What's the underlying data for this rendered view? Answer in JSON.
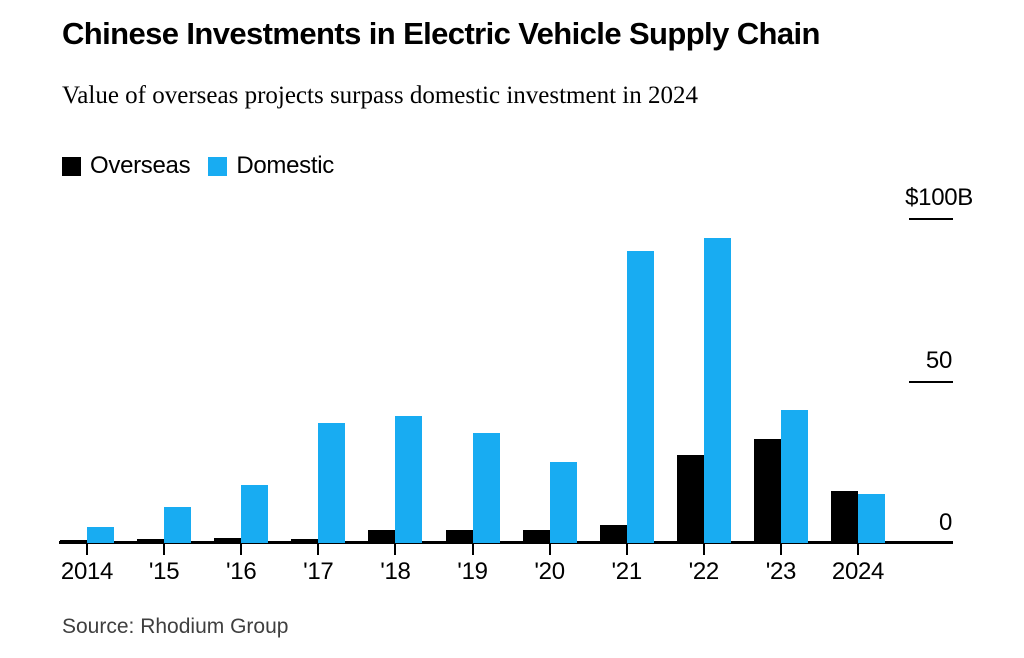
{
  "header": {
    "title": "Chinese Investments in Electric Vehicle Supply Chain",
    "subtitle": "Value of overseas projects surpass domestic investment in 2024"
  },
  "legend": {
    "items": [
      {
        "label": "Overseas",
        "color": "#000000"
      },
      {
        "label": "Domestic",
        "color": "#18acf2"
      }
    ]
  },
  "chart_data": {
    "type": "bar",
    "title": "Chinese Investments in Electric Vehicle Supply Chain",
    "subtitle": "Value of overseas projects surpass domestic investment in 2024",
    "unit": "billion USD",
    "categories": [
      "2014",
      "'15",
      "'16",
      "'17",
      "'18",
      "'19",
      "'20",
      "'21",
      "'22",
      "'23",
      "2024"
    ],
    "series": [
      {
        "name": "Overseas",
        "color": "#000000",
        "values": [
          0.8,
          1.2,
          1.5,
          1.3,
          4,
          4,
          3.9,
          5.5,
          27,
          32,
          16
        ]
      },
      {
        "name": "Domestic",
        "color": "#18acf2",
        "values": [
          4.9,
          11,
          17.8,
          37,
          39,
          34,
          25,
          90,
          94,
          41,
          15
        ]
      }
    ],
    "y_axis": {
      "range": [
        0,
        100
      ],
      "ticks": [
        {
          "label": "$100B",
          "value": 100
        },
        {
          "label": "50",
          "value": 50
        },
        {
          "label": "0",
          "value": 0
        }
      ]
    },
    "legend_position": "top-left",
    "grid": false
  },
  "footer": {
    "source": "Source: Rhodium Group"
  }
}
